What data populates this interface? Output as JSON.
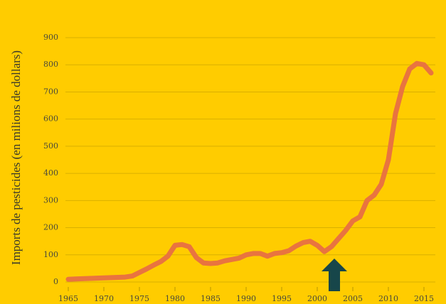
{
  "chart_data": {
    "type": "line",
    "ylabel": "Imports de pesticides (en milions de dollars)",
    "x": [
      1965,
      1966,
      1967,
      1968,
      1969,
      1970,
      1971,
      1972,
      1973,
      1974,
      1975,
      1976,
      1977,
      1978,
      1979,
      1980,
      1981,
      1982,
      1983,
      1984,
      1985,
      1986,
      1987,
      1988,
      1989,
      1990,
      1991,
      1992,
      1993,
      1994,
      1995,
      1996,
      1997,
      1998,
      1999,
      2000,
      2001,
      2002,
      2003,
      2004,
      2005,
      2006,
      2007,
      2008,
      2009,
      2010,
      2011,
      2012,
      2013,
      2014,
      2015,
      2016
    ],
    "series": [
      {
        "color": "#e9743f",
        "values": [
          10,
          11,
          12,
          13,
          14,
          15,
          16,
          17,
          18,
          22,
          35,
          48,
          62,
          75,
          95,
          135,
          138,
          130,
          90,
          70,
          68,
          70,
          78,
          83,
          88,
          100,
          105,
          105,
          95,
          105,
          108,
          115,
          132,
          145,
          150,
          135,
          112,
          130,
          160,
          190,
          225,
          240,
          300,
          320,
          360,
          450,
          620,
          720,
          785,
          805,
          800,
          770
        ]
      }
    ],
    "xlim": [
      1964,
      2017
    ],
    "xticks": [
      1965,
      1970,
      1975,
      1980,
      1985,
      1990,
      1995,
      2000,
      2005,
      2010,
      2015
    ],
    "ylim": [
      0,
      900
    ],
    "yticks": [
      0,
      100,
      200,
      300,
      400,
      500,
      600,
      700,
      800,
      900
    ],
    "grid": true
  }
}
